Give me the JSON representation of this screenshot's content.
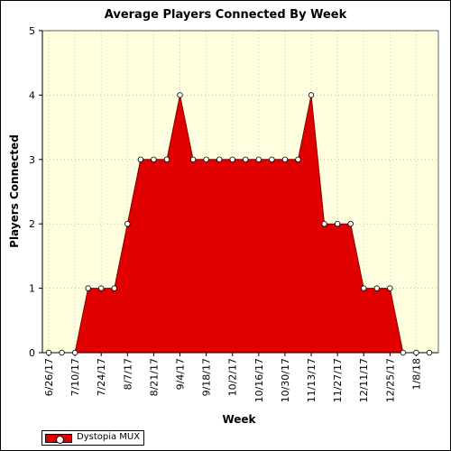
{
  "chart_data": {
    "type": "area",
    "title": "Average Players Connected By Week",
    "xlabel": "Week",
    "ylabel": "Players Connected",
    "ylim": [
      0,
      5
    ],
    "yticks": [
      "0",
      "1",
      "2",
      "3",
      "4",
      "5"
    ],
    "xtick_labels": [
      "6/26/17",
      "7/10/17",
      "7/24/17",
      "8/7/17",
      "8/21/17",
      "9/4/17",
      "9/18/17",
      "10/2/17",
      "10/16/17",
      "10/30/17",
      "11/13/17",
      "11/27/17",
      "12/11/17",
      "12/25/17",
      "1/8/18"
    ],
    "x": [
      "6/26/17",
      "7/3/17",
      "7/10/17",
      "7/17/17",
      "7/24/17",
      "7/31/17",
      "8/7/17",
      "8/14/17",
      "8/21/17",
      "8/28/17",
      "9/4/17",
      "9/11/17",
      "9/18/17",
      "9/25/17",
      "10/2/17",
      "10/9/17",
      "10/16/17",
      "10/23/17",
      "10/30/17",
      "11/6/17",
      "11/13/17",
      "11/20/17",
      "11/27/17",
      "12/4/17",
      "12/11/17",
      "12/18/17",
      "12/25/17",
      "1/1/18",
      "1/8/18",
      "1/15/18"
    ],
    "series": [
      {
        "name": "Dystopia MUX",
        "values": [
          0,
          0,
          0,
          1,
          1,
          1,
          2,
          3,
          3,
          3,
          4,
          3,
          3,
          3,
          3,
          3,
          3,
          3,
          3,
          3,
          4,
          2,
          2,
          2,
          1,
          1,
          1,
          0,
          0,
          0
        ]
      }
    ],
    "grid": true,
    "legend": "bottom-left",
    "colors": {
      "fill": "#e00000",
      "line": "#8b0000",
      "plot_background": "#ffffe0",
      "marker": "#ffffff"
    }
  }
}
